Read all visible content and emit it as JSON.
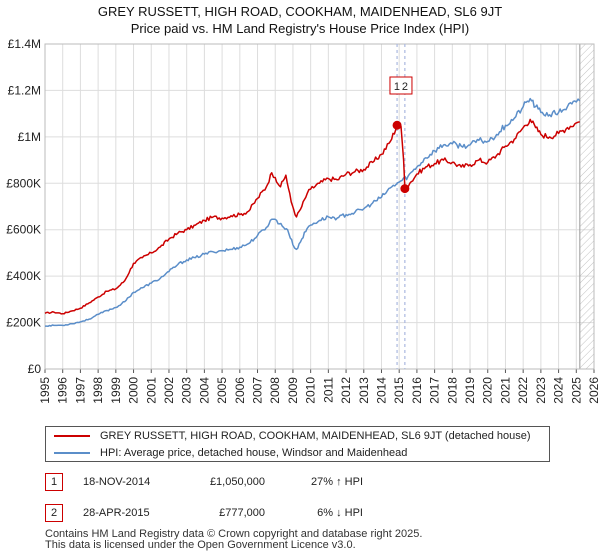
{
  "title_line1": "GREY RUSSETT, HIGH ROAD, COOKHAM, MAIDENHEAD, SL6 9JT",
  "title_line2": "Price paid vs. HM Land Registry's House Price Index (HPI)",
  "colors": {
    "property": "#cc0000",
    "hpi": "#5b8ec9",
    "grid": "#dddddd",
    "marker_line": "#aab8e0"
  },
  "chart_data": {
    "type": "line",
    "xlim": [
      1995,
      2026
    ],
    "ylim": [
      0,
      1400000
    ],
    "x_ticks": [
      "1995",
      "1996",
      "1997",
      "1998",
      "1999",
      "2000",
      "2001",
      "2002",
      "2003",
      "2004",
      "2005",
      "2006",
      "2007",
      "2008",
      "2009",
      "2010",
      "2011",
      "2012",
      "2013",
      "2014",
      "2015",
      "2016",
      "2017",
      "2018",
      "2019",
      "2020",
      "2021",
      "2022",
      "2023",
      "2024",
      "2025",
      "2026"
    ],
    "y_ticks": [
      {
        "value": 0,
        "label": "£0"
      },
      {
        "value": 200000,
        "label": "£200K"
      },
      {
        "value": 400000,
        "label": "£400K"
      },
      {
        "value": 600000,
        "label": "£600K"
      },
      {
        "value": 800000,
        "label": "£800K"
      },
      {
        "value": 1000000,
        "label": "£1M"
      },
      {
        "value": 1200000,
        "label": "£1.2M"
      },
      {
        "value": 1400000,
        "label": "£1.4M"
      }
    ],
    "forecast_from": 2025.2,
    "series": [
      {
        "name": "GREY RUSSETT, HIGH ROAD, COOKHAM, MAIDENHEAD, SL6 9JT (detached house)",
        "color": "#cc0000",
        "points": [
          [
            1995.0,
            240000
          ],
          [
            1995.5,
            245000
          ],
          [
            1996.0,
            238000
          ],
          [
            1996.5,
            250000
          ],
          [
            1997.0,
            262000
          ],
          [
            1997.5,
            285000
          ],
          [
            1998.0,
            310000
          ],
          [
            1998.5,
            335000
          ],
          [
            1999.0,
            345000
          ],
          [
            1999.5,
            380000
          ],
          [
            2000.0,
            455000
          ],
          [
            2000.5,
            480000
          ],
          [
            2001.0,
            500000
          ],
          [
            2001.5,
            525000
          ],
          [
            2002.0,
            560000
          ],
          [
            2002.5,
            585000
          ],
          [
            2003.0,
            600000
          ],
          [
            2003.5,
            620000
          ],
          [
            2004.0,
            640000
          ],
          [
            2004.5,
            655000
          ],
          [
            2005.0,
            650000
          ],
          [
            2005.5,
            660000
          ],
          [
            2006.0,
            665000
          ],
          [
            2006.5,
            680000
          ],
          [
            2007.0,
            735000
          ],
          [
            2007.5,
            785000
          ],
          [
            2007.8,
            845000
          ],
          [
            2008.0,
            825000
          ],
          [
            2008.3,
            785000
          ],
          [
            2008.6,
            835000
          ],
          [
            2008.9,
            720000
          ],
          [
            2009.2,
            655000
          ],
          [
            2009.5,
            700000
          ],
          [
            2009.8,
            755000
          ],
          [
            2010.0,
            775000
          ],
          [
            2010.5,
            800000
          ],
          [
            2011.0,
            820000
          ],
          [
            2011.5,
            815000
          ],
          [
            2012.0,
            840000
          ],
          [
            2012.5,
            850000
          ],
          [
            2013.0,
            860000
          ],
          [
            2013.5,
            890000
          ],
          [
            2014.0,
            925000
          ],
          [
            2014.5,
            980000
          ],
          [
            2014.88,
            1050000
          ],
          [
            2015.1,
            1045000
          ],
          [
            2015.25,
            900000
          ],
          [
            2015.32,
            777000
          ],
          [
            2015.6,
            800000
          ],
          [
            2016.0,
            840000
          ],
          [
            2016.5,
            870000
          ],
          [
            2017.0,
            885000
          ],
          [
            2017.5,
            900000
          ],
          [
            2018.0,
            890000
          ],
          [
            2018.5,
            870000
          ],
          [
            2019.0,
            880000
          ],
          [
            2019.5,
            900000
          ],
          [
            2020.0,
            890000
          ],
          [
            2020.5,
            920000
          ],
          [
            2021.0,
            960000
          ],
          [
            2021.5,
            990000
          ],
          [
            2022.0,
            1040000
          ],
          [
            2022.4,
            1075000
          ],
          [
            2022.7,
            1040000
          ],
          [
            2023.0,
            1010000
          ],
          [
            2023.5,
            1000000
          ],
          [
            2024.0,
            1015000
          ],
          [
            2024.5,
            1040000
          ],
          [
            2025.0,
            1060000
          ],
          [
            2025.2,
            1065000
          ]
        ]
      },
      {
        "name": "HPI: Average price, detached house, Windsor and Maidenhead",
        "color": "#5b8ec9",
        "points": [
          [
            1995.0,
            185000
          ],
          [
            1995.5,
            188000
          ],
          [
            1996.0,
            188000
          ],
          [
            1996.5,
            195000
          ],
          [
            1997.0,
            203000
          ],
          [
            1997.5,
            215000
          ],
          [
            1998.0,
            235000
          ],
          [
            1998.5,
            252000
          ],
          [
            1999.0,
            265000
          ],
          [
            1999.5,
            290000
          ],
          [
            2000.0,
            330000
          ],
          [
            2000.5,
            350000
          ],
          [
            2001.0,
            370000
          ],
          [
            2001.5,
            390000
          ],
          [
            2002.0,
            420000
          ],
          [
            2002.5,
            450000
          ],
          [
            2003.0,
            470000
          ],
          [
            2003.5,
            480000
          ],
          [
            2004.0,
            495000
          ],
          [
            2004.5,
            505000
          ],
          [
            2005.0,
            510000
          ],
          [
            2005.5,
            515000
          ],
          [
            2006.0,
            525000
          ],
          [
            2006.5,
            540000
          ],
          [
            2007.0,
            575000
          ],
          [
            2007.5,
            610000
          ],
          [
            2007.8,
            645000
          ],
          [
            2008.0,
            645000
          ],
          [
            2008.4,
            615000
          ],
          [
            2008.7,
            600000
          ],
          [
            2009.0,
            535000
          ],
          [
            2009.2,
            515000
          ],
          [
            2009.5,
            560000
          ],
          [
            2009.8,
            605000
          ],
          [
            2010.0,
            620000
          ],
          [
            2010.5,
            640000
          ],
          [
            2011.0,
            655000
          ],
          [
            2011.5,
            650000
          ],
          [
            2012.0,
            665000
          ],
          [
            2012.5,
            675000
          ],
          [
            2013.0,
            690000
          ],
          [
            2013.5,
            715000
          ],
          [
            2014.0,
            740000
          ],
          [
            2014.5,
            780000
          ],
          [
            2015.0,
            805000
          ],
          [
            2015.5,
            830000
          ],
          [
            2016.0,
            870000
          ],
          [
            2016.5,
            910000
          ],
          [
            2017.0,
            940000
          ],
          [
            2017.5,
            965000
          ],
          [
            2018.0,
            970000
          ],
          [
            2018.5,
            960000
          ],
          [
            2019.0,
            965000
          ],
          [
            2019.5,
            985000
          ],
          [
            2020.0,
            980000
          ],
          [
            2020.5,
            1010000
          ],
          [
            2021.0,
            1050000
          ],
          [
            2021.5,
            1080000
          ],
          [
            2022.0,
            1130000
          ],
          [
            2022.4,
            1165000
          ],
          [
            2022.7,
            1130000
          ],
          [
            2023.0,
            1105000
          ],
          [
            2023.5,
            1095000
          ],
          [
            2024.0,
            1105000
          ],
          [
            2024.5,
            1130000
          ],
          [
            2025.0,
            1150000
          ],
          [
            2025.2,
            1155000
          ]
        ]
      }
    ],
    "transactions": [
      {
        "num": "1",
        "x": 2014.88,
        "y": 1050000,
        "date": "18-NOV-2014",
        "price": "£1,050,000",
        "hpi": "27% ↑ HPI"
      },
      {
        "num": "2",
        "x": 2015.32,
        "y": 777000,
        "date": "28-APR-2015",
        "price": "£777,000",
        "hpi": "6% ↓ HPI"
      }
    ]
  },
  "legend": {
    "property": "GREY RUSSETT, HIGH ROAD, COOKHAM, MAIDENHEAD, SL6 9JT (detached house)",
    "hpi": "HPI: Average price, detached house, Windsor and Maidenhead"
  },
  "footer": {
    "line1": "Contains HM Land Registry data © Crown copyright and database right 2025.",
    "line2": "This data is licensed under the Open Government Licence v3.0."
  }
}
